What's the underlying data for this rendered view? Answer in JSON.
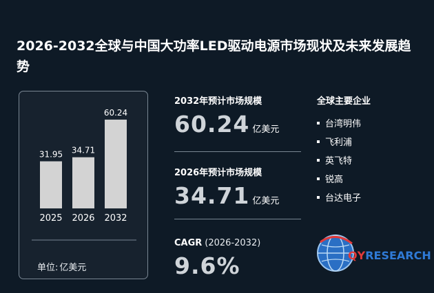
{
  "title": "2026-2032全球与中国大功率LED驱动电源市场现状及未来发展趋势",
  "chart_data": {
    "type": "bar",
    "categories": [
      "2025",
      "2026",
      "2032"
    ],
    "values": [
      31.95,
      34.71,
      60.24
    ],
    "ylim": [
      0,
      70
    ],
    "grid": false,
    "unit_label": "单位:",
    "unit_value": "亿美元",
    "bar_color": "#d3d3d3"
  },
  "stats": {
    "forecast_2032": {
      "label": "2032年预计市场规模",
      "value": "60.24",
      "unit": "亿美元"
    },
    "forecast_2026": {
      "label": "2026年预计市场规模",
      "value": "34.71",
      "unit": "亿美元"
    },
    "cagr": {
      "label": "CAGR",
      "range": "(2026-2032)",
      "value": "9.6%"
    }
  },
  "companies": {
    "title": "全球主要企业",
    "items": [
      "台湾明伟",
      "飞利浦",
      "英飞特",
      "锐高",
      "台达电子"
    ]
  },
  "logo": {
    "q": "QY",
    "rest": "RESEARCH",
    "icon": "globe-icon"
  }
}
